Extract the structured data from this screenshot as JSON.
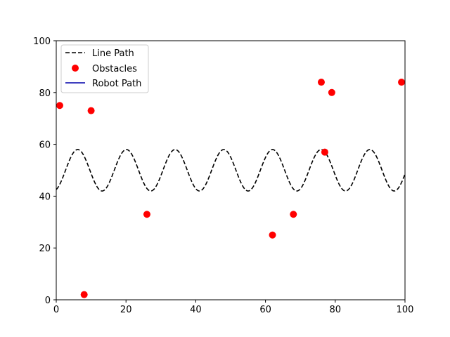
{
  "chart_data": {
    "type": "line",
    "title": "",
    "xlabel": "",
    "ylabel": "",
    "xlim": [
      0,
      100
    ],
    "ylim": [
      0,
      100
    ],
    "xticks": [
      0,
      20,
      40,
      60,
      80,
      100
    ],
    "yticks": [
      0,
      20,
      40,
      60,
      80,
      100
    ],
    "grid": false,
    "legend_position": "top-left",
    "series": [
      {
        "name": "Line Path",
        "kind": "line",
        "style": "dashed",
        "color": "#000000",
        "function": "y = 50 + 8*sin(0.45*x - 1.2)",
        "x_range": [
          0,
          100
        ]
      },
      {
        "name": "Obstacles",
        "kind": "scatter",
        "color": "#ff0000",
        "points": [
          [
            1,
            75
          ],
          [
            8,
            2
          ],
          [
            10,
            73
          ],
          [
            26,
            33
          ],
          [
            62,
            25
          ],
          [
            68,
            33
          ],
          [
            76,
            84
          ],
          [
            77,
            57
          ],
          [
            79,
            80
          ],
          [
            99,
            84
          ]
        ]
      },
      {
        "name": "Robot Path",
        "kind": "line",
        "style": "solid",
        "color": "#0000aa",
        "points": []
      }
    ]
  }
}
